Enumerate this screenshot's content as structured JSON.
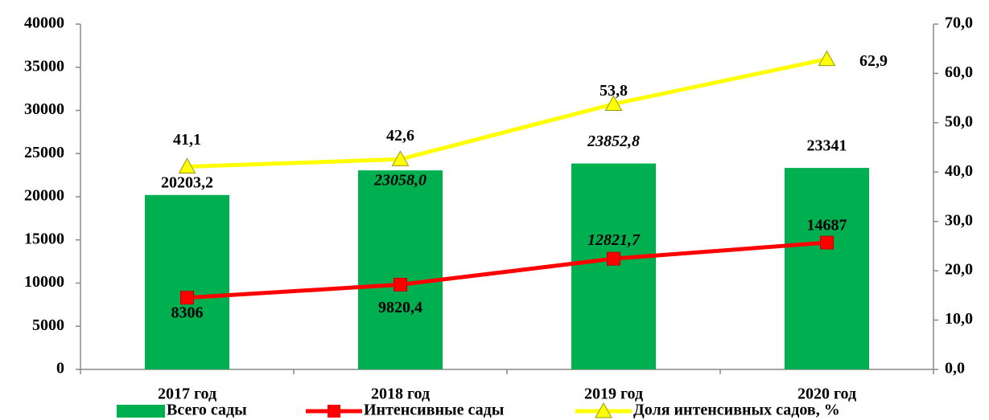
{
  "chart_data": {
    "type": "bar-line",
    "categories": [
      "2017 год",
      "2018 год",
      "2019 год",
      "2020 год"
    ],
    "series": [
      {
        "name": "Всего сады",
        "type": "bar",
        "color": "#00b050",
        "values": [
          20203.2,
          23058.0,
          23852.8,
          23341
        ],
        "value_labels": [
          "20203,2",
          "23058,0",
          "23852,8",
          "23341"
        ]
      },
      {
        "name": "Интенсивные сады",
        "type": "line",
        "color": "#ff0000",
        "values": [
          8306,
          9820.4,
          12821.7,
          14687
        ],
        "value_labels": [
          "8306",
          "9820,4",
          "12821,7",
          "14687"
        ]
      },
      {
        "name": "Доля интенсивных садов, %",
        "type": "line",
        "axis": "y2",
        "color": "#ffff00",
        "values": [
          41.1,
          42.6,
          53.8,
          62.9
        ],
        "value_labels": [
          "41,1",
          "42,6",
          "53,8",
          "62,9"
        ]
      }
    ],
    "ylim": [
      0,
      40000
    ],
    "yticks": [
      0,
      5000,
      10000,
      15000,
      20000,
      25000,
      30000,
      35000,
      40000
    ],
    "y2lim": [
      0,
      70
    ],
    "y2ticks": [
      {
        "value": 0,
        "label": "0,0"
      },
      {
        "value": 10,
        "label": "10,0"
      },
      {
        "value": 20,
        "label": "20,0"
      },
      {
        "value": 30,
        "label": "30,0"
      },
      {
        "value": 40,
        "label": "40,0"
      },
      {
        "value": 50,
        "label": "50,0"
      },
      {
        "value": 60,
        "label": "60,0"
      },
      {
        "value": 70,
        "label": "70,0"
      }
    ],
    "grid": false
  }
}
